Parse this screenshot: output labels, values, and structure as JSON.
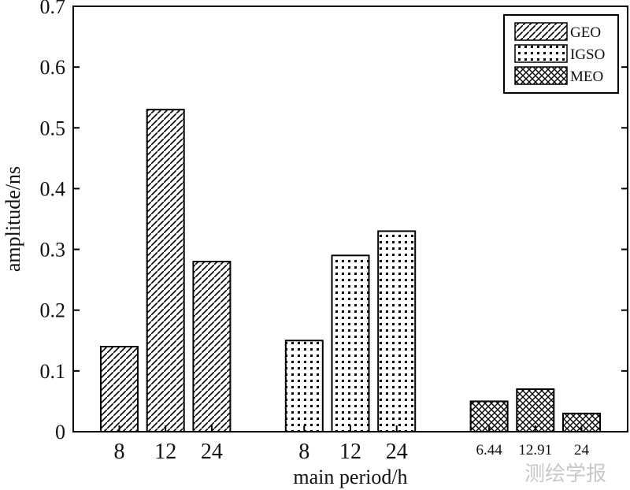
{
  "chart_data": {
    "type": "bar",
    "xlabel": "main period/h",
    "ylabel": "amplitude/ns",
    "ylim": [
      0,
      0.7
    ],
    "yticks": [
      "0",
      "0.1",
      "0.2",
      "0.3",
      "0.4",
      "0.5",
      "0.6",
      "0.7"
    ],
    "grid": false,
    "legend_position": "top-right",
    "series": [
      {
        "name": "GEO",
        "pattern": "diagonal-hatch",
        "categories": [
          "8",
          "12",
          "24"
        ],
        "values": [
          0.14,
          0.53,
          0.28
        ]
      },
      {
        "name": "IGSO",
        "pattern": "dots",
        "categories": [
          "8",
          "12",
          "24"
        ],
        "values": [
          0.15,
          0.29,
          0.33
        ]
      },
      {
        "name": "MEO",
        "pattern": "crosshatch",
        "categories": [
          "6.44",
          "12.91",
          "24"
        ],
        "values": [
          0.05,
          0.07,
          0.03
        ]
      }
    ]
  },
  "watermark": "测绘学报"
}
